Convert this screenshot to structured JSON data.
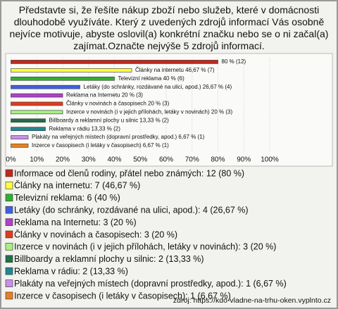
{
  "chart_data": {
    "type": "bar",
    "orientation": "horizontal",
    "title": "Představte si, že řešíte nákup zboží nebo služeb, které v domácnosti dlouhodobě využíváte. Který z uvedených zdrojů informací Vás osobně nejvíce motivuje, abyste oslovil(a) konkrétní značku nebo se o ni začal(a) zajímat.Označte nejvýše 5 zdrojů informací.",
    "values": [
      80,
      46.67,
      40,
      26.67,
      20,
      20,
      20,
      13.33,
      13.33,
      6.67,
      6.67
    ],
    "value_labels": [
      "80 % (12)",
      "Články na internetu 46,67 % (7)",
      "Televizní reklama 40 % (6)",
      "Letáky (do schránky, rozdávané na ulici, apod.) 26,67 % (4)",
      "Reklama na Internetu 20 % (3)",
      "Články v novinách a časopisech 20 % (3)",
      "Inzerce v novinách (i v jejich přílohách, letáky v novinách) 20 % (3)",
      "Billboardy a reklamní plochy u silnic 13,33 % (2)",
      "Reklama v rádiu 13,33 % (2)",
      "Plakáty na veřejných místech (dopravní prostředky, apod.) 6,67 % (1)",
      "Inzerce v časopisech (i letáky v časopisech) 6,67 % (1)"
    ],
    "colors": [
      "#c0281c",
      "#ffff40",
      "#30b030",
      "#4060e0",
      "#b040c8",
      "#e03c1c",
      "#a8f080",
      "#207048",
      "#208890",
      "#c890e8",
      "#e88020"
    ],
    "legend": [
      "Informace od členů rodiny, přátel nebo známých: 12 (80 %)",
      "Články na internetu: 7 (46,67 %)",
      "Televizní reklama: 6 (40 %)",
      "Letáky (do schránky, rozdávané na ulici, apod.): 4 (26,67 %)",
      "Reklama na Internetu: 3 (20 %)",
      "Články v novinách a časopisech: 3 (20 %)",
      "Inzerce v novinách (i v jejich přílohách, letáky v novinách): 3 (20 %)",
      "Billboardy a reklamní plochy u silnic: 2 (13,33 %)",
      "Reklama v rádiu: 2 (13,33 %)",
      "Plakáty na veřejných místech (dopravní prostředky, apod.): 1 (6,67 %)",
      "Inzerce v časopisech (i letáky v časopisech): 1 (6,67 %)"
    ],
    "xlim": [
      0,
      100
    ],
    "xticks": [
      {
        "value": 0,
        "label": "0%"
      },
      {
        "value": 10,
        "label": "10%"
      },
      {
        "value": 20,
        "label": "20%"
      },
      {
        "value": 30,
        "label": "30%"
      },
      {
        "value": 40,
        "label": "40%"
      },
      {
        "value": 50,
        "label": "50%"
      },
      {
        "value": 60,
        "label": "60%"
      },
      {
        "value": 70,
        "label": "70%"
      },
      {
        "value": 80,
        "label": "80%"
      },
      {
        "value": 90,
        "label": "90%"
      },
      {
        "value": 100,
        "label": "100%"
      }
    ],
    "grid": true,
    "source": "zdroj: https://kdo-vladne-na-trhu-oken.vyplnto.cz"
  }
}
